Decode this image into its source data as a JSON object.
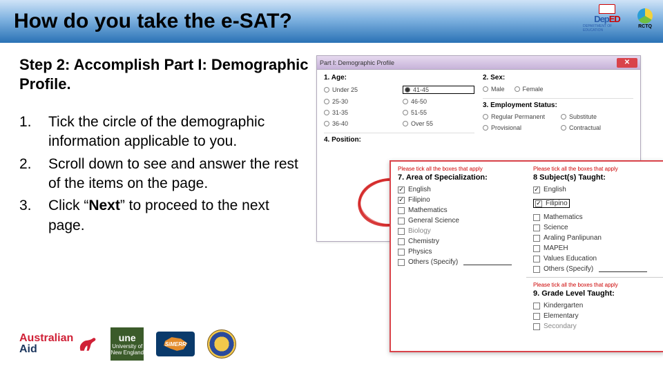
{
  "header": {
    "title": "How do you take the e-SAT?",
    "deped_main": "DepED",
    "deped_sub": "DEPARTMENT OF EDUCATION",
    "rctq": "RCTQ"
  },
  "left": {
    "step_title": "Step 2: Accomplish Part I: Demographic Profile.",
    "items": [
      {
        "num": "1.",
        "text_a": "Tick the circle of the demographic information applicable to you."
      },
      {
        "num": "2.",
        "text_a": "Scroll down to see and answer the rest of the items on the page."
      },
      {
        "num": "3.",
        "text_a": "Click “",
        "bold": "Next",
        "text_b": "” to proceed to the next page."
      }
    ]
  },
  "win_back": {
    "title": "Part I: Demographic Profile",
    "q1": "1. Age:",
    "age_opts": [
      "Under 25",
      "25-30",
      "31-35",
      "36-40",
      "41-45",
      "46-50",
      "51-55",
      "Over 55"
    ],
    "age_selected": "41-45",
    "q2": "2. Sex:",
    "sex_opts": [
      "Male",
      "Female"
    ],
    "q3": "3. Employment Status:",
    "emp_opts": [
      "Regular Permanent",
      "Substitute",
      "Provisional",
      "Contractual"
    ],
    "q4": "4. Position:"
  },
  "win_front": {
    "hint_left": "Please tick all the boxes that apply",
    "q7": "7. Area of Specialization:",
    "spec": [
      {
        "label": "English",
        "checked": true
      },
      {
        "label": "Filipino",
        "checked": true
      },
      {
        "label": "Mathematics",
        "checked": false
      },
      {
        "label": "General Science",
        "checked": false
      },
      {
        "label": "Biology",
        "checked": false,
        "grey": true
      },
      {
        "label": "Chemistry",
        "checked": false
      },
      {
        "label": "Physics",
        "checked": false
      },
      {
        "label": "Others (Specify)",
        "checked": false,
        "underline": true
      }
    ],
    "hint_right": "Please tick all the boxes that apply",
    "q8": "8 Subject(s) Taught:",
    "subj": [
      {
        "label": "English",
        "checked": true
      },
      {
        "label": "Filipino",
        "checked": true,
        "highlight": true
      },
      {
        "label": "Mathematics",
        "checked": false
      },
      {
        "label": "Science",
        "checked": false
      },
      {
        "label": "Araling Panlipunan",
        "checked": false
      },
      {
        "label": "MAPEH",
        "checked": false
      },
      {
        "label": "Values Education",
        "checked": false
      },
      {
        "label": "Others (Specify)",
        "checked": false,
        "underline": true
      }
    ],
    "q9": "9. Grade Level Taught:",
    "grade": [
      {
        "label": "Kindergarten",
        "checked": false
      },
      {
        "label": "Elementary",
        "checked": false
      },
      {
        "label": "Secondary",
        "checked": false,
        "grey": true
      }
    ]
  },
  "footer": {
    "aus1": "Australian",
    "aus2": "Aid",
    "une": "une",
    "une_sub1": "University of",
    "une_sub2": "New England",
    "simerr": "SiMERR"
  }
}
